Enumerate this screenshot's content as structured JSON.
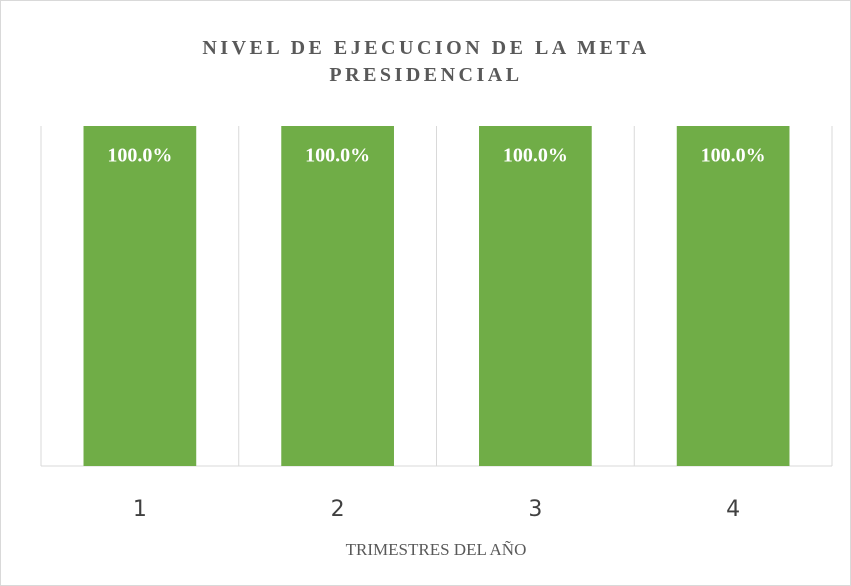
{
  "chart_data": {
    "type": "bar",
    "title": "NIVEL DE EJECUCION DE LA META PRESIDENCIAL",
    "x_label": "TRIMESTRES DEL AÑO",
    "categories": [
      "1",
      "2",
      "3",
      "4"
    ],
    "values": [
      100,
      100,
      100,
      100
    ],
    "value_labels": [
      "100.0%",
      "100.0%",
      "100.0%",
      "100.0%"
    ],
    "color": "#70ad47",
    "ylim": [
      0,
      100
    ]
  }
}
